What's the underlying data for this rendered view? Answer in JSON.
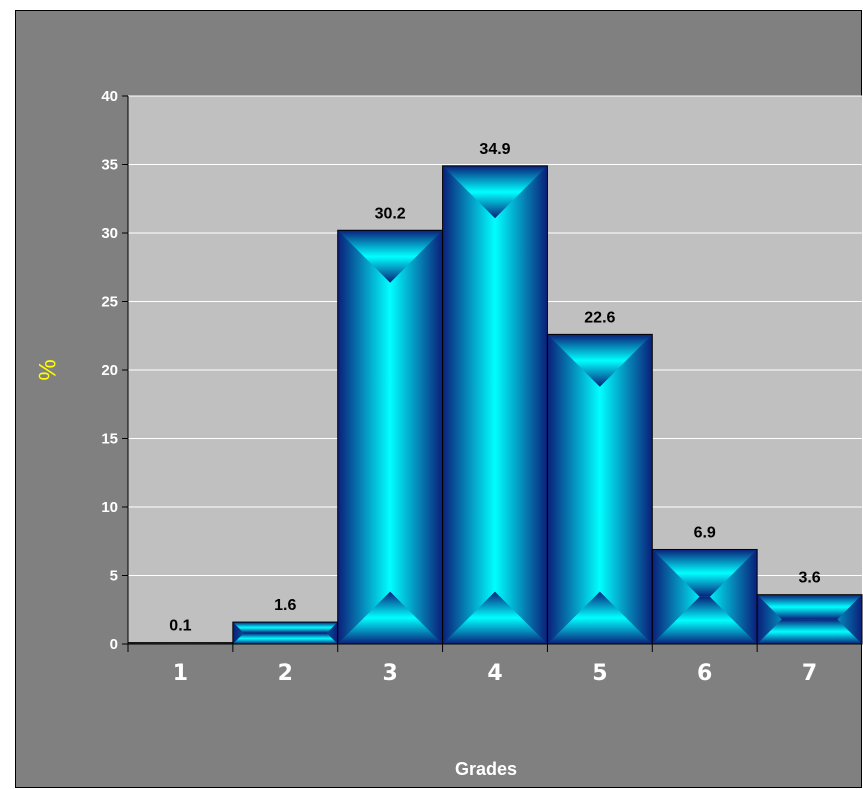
{
  "chart_data": {
    "type": "bar",
    "categories": [
      "1",
      "2",
      "3",
      "4",
      "5",
      "6",
      "7"
    ],
    "values": [
      0.1,
      1.6,
      30.2,
      34.9,
      22.6,
      6.9,
      3.6
    ],
    "data_labels": [
      "0.1",
      "1.6",
      "30.2",
      "34.9",
      "22.6",
      "6.9",
      "3.6"
    ],
    "title": "",
    "xlabel": "Grades",
    "ylabel": "%",
    "ylim": [
      0,
      40
    ],
    "yticks": [
      "0",
      "5",
      "10",
      "15",
      "20",
      "25",
      "30",
      "35",
      "40"
    ],
    "grid": "horizontal",
    "legend": "none",
    "colors": {
      "background": "#808080",
      "plot_area": "#c0c0c0",
      "bar_edge": "#0a1f7a",
      "bar_center": "#00ffff",
      "ylabel": "#ffff00",
      "axis_text": "#ffffff",
      "data_label": "#000000",
      "gridline": "#ffffff"
    }
  }
}
